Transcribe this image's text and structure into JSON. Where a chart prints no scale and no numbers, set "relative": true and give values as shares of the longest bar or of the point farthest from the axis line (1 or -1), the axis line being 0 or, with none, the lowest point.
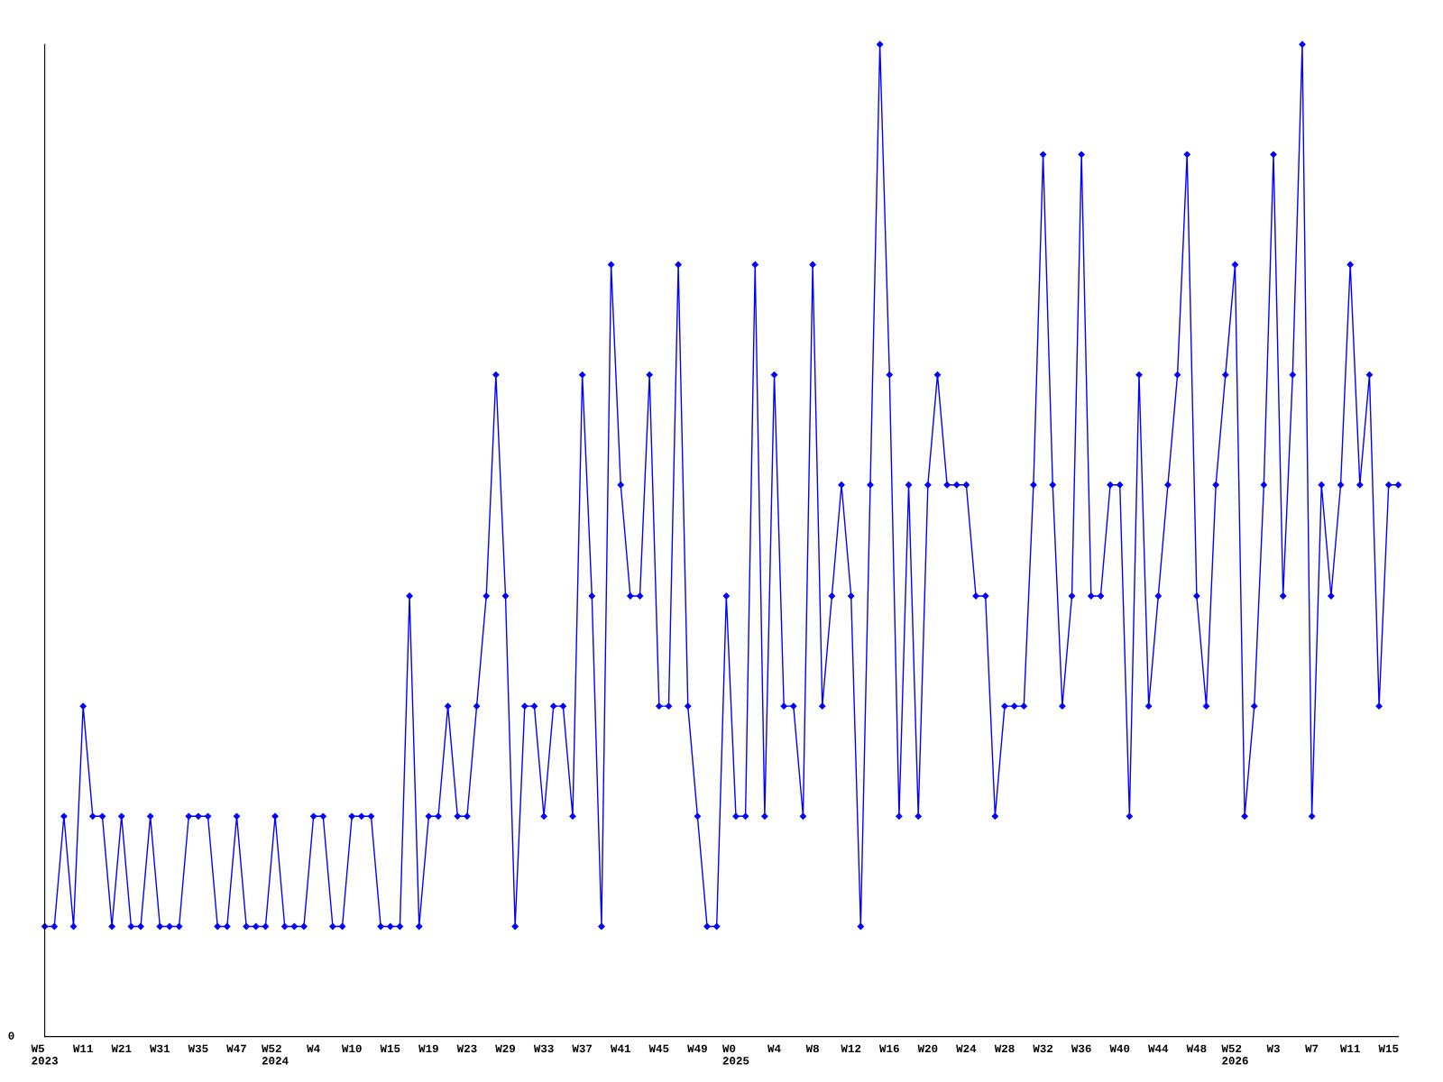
{
  "chart_data": {
    "type": "line",
    "relative": true,
    "marker": "diamond",
    "line_style": "solid",
    "grid": false,
    "annotations": [
      "0"
    ],
    "categories": [
      "W5\n2023",
      null,
      null,
      null,
      "W11",
      null,
      null,
      null,
      "W21",
      null,
      null,
      null,
      "W31",
      null,
      null,
      null,
      "W35",
      null,
      null,
      null,
      "W47",
      null,
      null,
      null,
      "W52\n2024",
      null,
      null,
      null,
      "W4",
      null,
      null,
      null,
      "W10",
      null,
      null,
      null,
      "W15",
      null,
      null,
      null,
      "W19",
      null,
      null,
      null,
      "W23",
      null,
      null,
      null,
      "W29",
      null,
      null,
      null,
      "W33",
      null,
      null,
      null,
      "W37",
      null,
      null,
      null,
      "W41",
      null,
      null,
      null,
      "W45",
      null,
      null,
      null,
      "W49",
      null,
      null,
      null,
      "W0\n2025",
      null,
      null,
      null,
      "W4",
      null,
      null,
      null,
      "W8",
      null,
      null,
      null,
      "W12",
      null,
      null,
      null,
      "W16",
      null,
      null,
      null,
      "W20",
      null,
      null,
      null,
      "W24",
      null,
      null,
      null,
      "W28",
      null,
      null,
      null,
      "W32",
      null,
      null,
      null,
      "W36",
      null,
      null,
      null,
      "W40",
      null,
      null,
      null,
      "W44",
      null,
      null,
      null,
      "W48",
      null,
      null,
      null,
      "W52\n2026",
      null,
      null,
      null,
      "W3",
      null,
      null,
      null,
      "W7",
      null,
      null,
      null,
      "W11",
      null,
      null,
      null,
      "W15",
      null
    ],
    "series": [
      {
        "color": "#0000ff",
        "values": [
          0.111,
          0.111,
          0.222,
          0.111,
          0.333,
          0.222,
          0.222,
          0.111,
          0.222,
          0.111,
          0.111,
          0.222,
          0.111,
          0.111,
          0.111,
          0.222,
          0.222,
          0.222,
          0.111,
          0.111,
          0.222,
          0.111,
          0.111,
          0.111,
          0.222,
          0.111,
          0.111,
          0.111,
          0.222,
          0.222,
          0.111,
          0.111,
          0.222,
          0.222,
          0.222,
          0.111,
          0.111,
          0.111,
          0.444,
          0.111,
          0.222,
          0.222,
          0.333,
          0.222,
          0.222,
          0.333,
          0.444,
          0.667,
          0.444,
          0.111,
          0.333,
          0.333,
          0.222,
          0.333,
          0.333,
          0.222,
          0.667,
          0.444,
          0.111,
          0.778,
          0.556,
          0.444,
          0.444,
          0.667,
          0.333,
          0.333,
          0.778,
          0.333,
          0.222,
          0.111,
          0.111,
          0.444,
          0.222,
          0.222,
          0.778,
          0.222,
          0.667,
          0.333,
          0.333,
          0.222,
          0.778,
          0.333,
          0.444,
          0.556,
          0.444,
          0.111,
          0.556,
          1,
          0.667,
          0.222,
          0.556,
          0.222,
          0.556,
          0.667,
          0.556,
          0.556,
          0.556,
          0.444,
          0.444,
          0.222,
          0.333,
          0.333,
          0.333,
          0.556,
          0.889,
          0.556,
          0.333,
          0.444,
          0.889,
          0.444,
          0.444,
          0.556,
          0.556,
          0.222,
          0.667,
          0.333,
          0.444,
          0.556,
          0.667,
          0.889,
          0.444,
          0.333,
          0.556,
          0.667,
          0.778,
          0.222,
          0.333,
          0.556,
          0.889,
          0.444,
          0.667,
          1,
          0.222,
          0.556,
          0.444,
          0.556,
          0.778,
          0.556,
          0.667,
          0.333,
          0.556,
          0.556
        ]
      }
    ]
  }
}
